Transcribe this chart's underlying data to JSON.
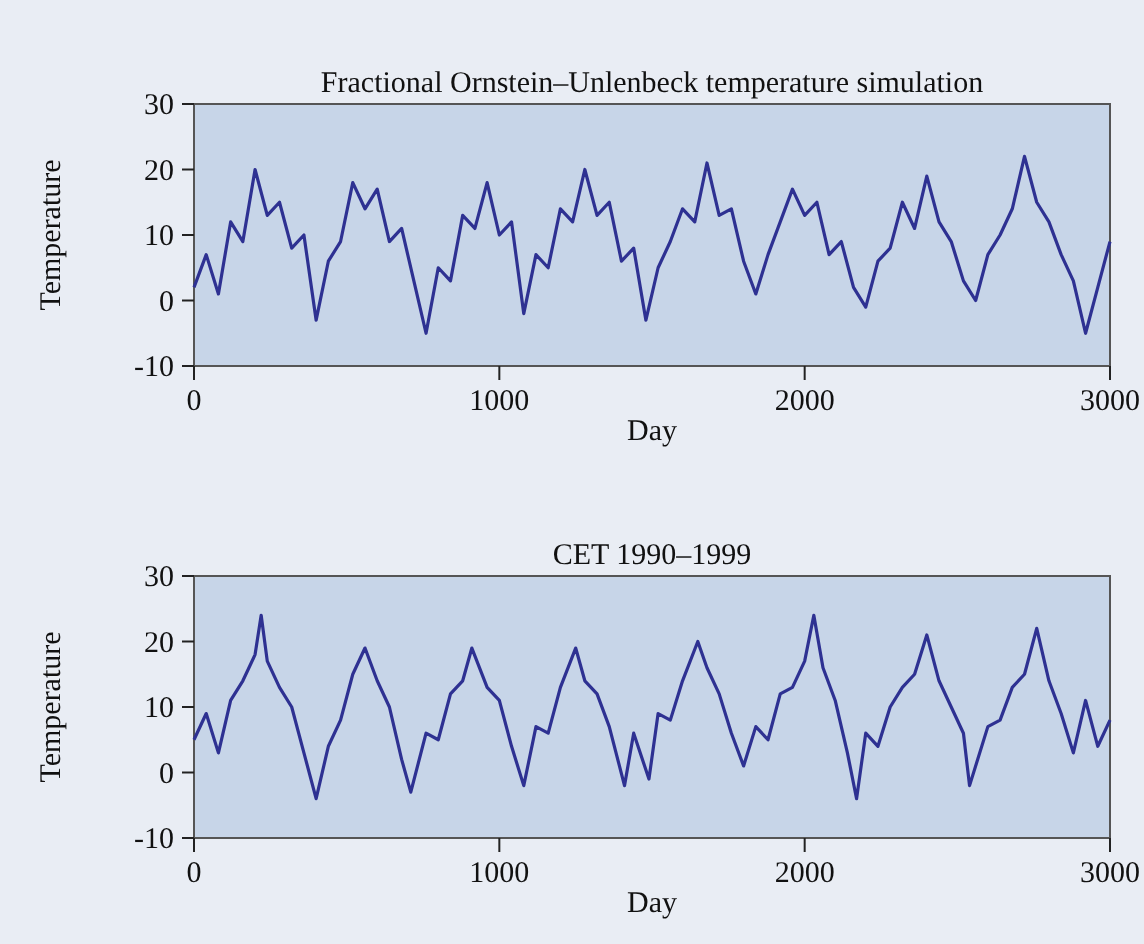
{
  "chart_data": [
    {
      "type": "line",
      "title": "Fractional Ornstein–Unlenbeck temperature simulation",
      "xlabel": "Day",
      "ylabel": "Temperature",
      "xlim": [
        0,
        3000
      ],
      "xticks": [
        0,
        1000,
        2000,
        3000
      ],
      "ylim": [
        -10,
        30
      ],
      "yticks": [
        -10,
        0,
        10,
        20,
        30
      ],
      "series": [
        {
          "color": "#2e3192",
          "x": [
            0,
            40,
            80,
            120,
            160,
            200,
            240,
            280,
            320,
            360,
            400,
            440,
            480,
            520,
            560,
            600,
            640,
            680,
            720,
            760,
            800,
            840,
            880,
            920,
            960,
            1000,
            1040,
            1080,
            1120,
            1160,
            1200,
            1240,
            1280,
            1320,
            1360,
            1400,
            1440,
            1480,
            1520,
            1560,
            1600,
            1640,
            1680,
            1720,
            1760,
            1800,
            1840,
            1880,
            1920,
            1960,
            2000,
            2040,
            2080,
            2120,
            2160,
            2200,
            2240,
            2280,
            2320,
            2360,
            2400,
            2440,
            2480,
            2520,
            2560,
            2600,
            2640,
            2680,
            2720,
            2760,
            2800,
            2840,
            2880,
            2920,
            2960,
            3000
          ],
          "values": [
            2,
            7,
            1,
            12,
            9,
            20,
            13,
            15,
            8,
            10,
            -3,
            6,
            9,
            18,
            14,
            17,
            9,
            11,
            3,
            -5,
            5,
            3,
            13,
            11,
            18,
            10,
            12,
            -2,
            7,
            5,
            14,
            12,
            20,
            13,
            15,
            6,
            8,
            -3,
            5,
            9,
            14,
            12,
            21,
            13,
            14,
            6,
            1,
            7,
            12,
            17,
            13,
            15,
            7,
            9,
            2,
            -1,
            6,
            8,
            15,
            11,
            19,
            12,
            9,
            3,
            0,
            7,
            10,
            14,
            22,
            15,
            12,
            7,
            3,
            -5,
            2,
            9
          ]
        }
      ]
    },
    {
      "type": "line",
      "title": "CET 1990–1999",
      "xlabel": "Day",
      "ylabel": "Temperature",
      "xlim": [
        0,
        3000
      ],
      "xticks": [
        0,
        1000,
        2000,
        3000
      ],
      "ylim": [
        -10,
        30
      ],
      "yticks": [
        -10,
        0,
        10,
        20,
        30
      ],
      "series": [
        {
          "color": "#2e3192",
          "x": [
            0,
            40,
            80,
            120,
            160,
            200,
            220,
            240,
            280,
            320,
            360,
            400,
            440,
            480,
            520,
            560,
            600,
            640,
            680,
            710,
            760,
            800,
            840,
            880,
            910,
            960,
            1000,
            1040,
            1080,
            1120,
            1160,
            1200,
            1250,
            1280,
            1320,
            1360,
            1410,
            1440,
            1490,
            1520,
            1560,
            1600,
            1650,
            1680,
            1720,
            1760,
            1800,
            1840,
            1880,
            1920,
            1960,
            2000,
            2030,
            2060,
            2100,
            2140,
            2170,
            2200,
            2240,
            2280,
            2320,
            2360,
            2400,
            2440,
            2480,
            2520,
            2540,
            2600,
            2640,
            2680,
            2720,
            2760,
            2800,
            2840,
            2880,
            2920,
            2960,
            3000
          ],
          "values": [
            5,
            9,
            3,
            11,
            14,
            18,
            24,
            17,
            13,
            10,
            3,
            -4,
            4,
            8,
            15,
            19,
            14,
            10,
            2,
            -3,
            6,
            5,
            12,
            14,
            19,
            13,
            11,
            4,
            -2,
            7,
            6,
            13,
            19,
            14,
            12,
            7,
            -2,
            6,
            -1,
            9,
            8,
            14,
            20,
            16,
            12,
            6,
            1,
            7,
            5,
            12,
            13,
            17,
            24,
            16,
            11,
            3,
            -4,
            6,
            4,
            10,
            13,
            15,
            21,
            14,
            10,
            6,
            -2,
            7,
            8,
            13,
            15,
            22,
            14,
            9,
            3,
            11,
            4,
            8
          ]
        }
      ]
    }
  ]
}
